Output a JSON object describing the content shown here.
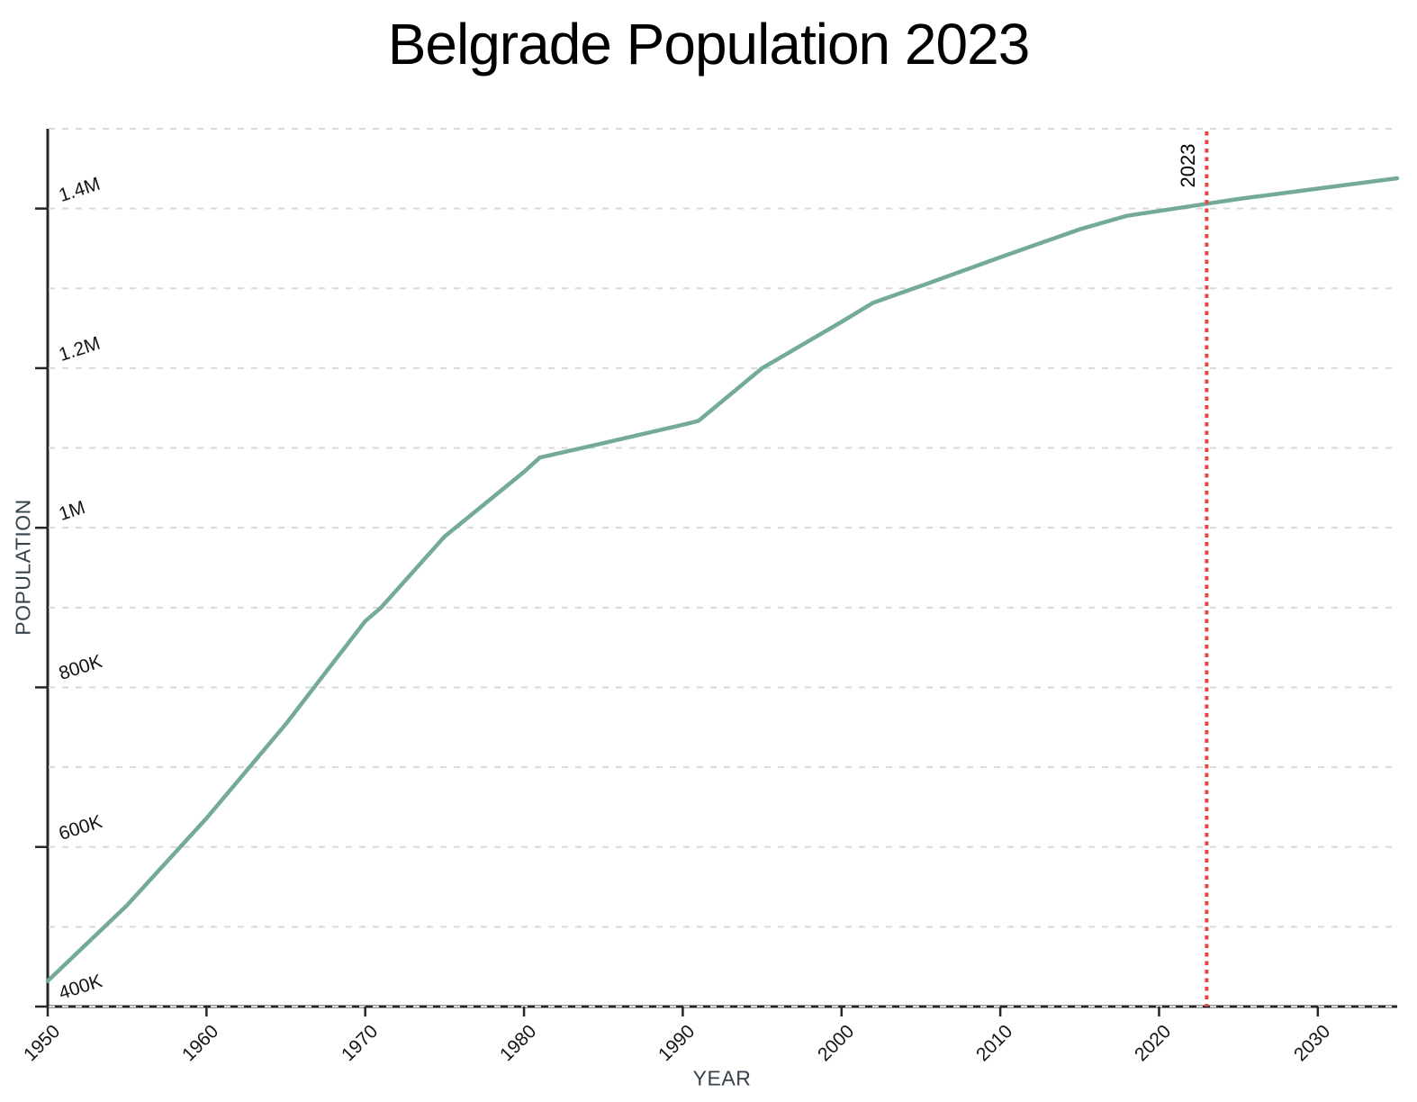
{
  "page": {
    "title": "Belgrade Population 2023"
  },
  "colors": {
    "series_line": "#74ab96",
    "marker_line": "#e8483c",
    "gridline": "#d9d9d9",
    "axis": "#262626",
    "tick_label": "#141414",
    "axis_title": "#37424a",
    "title": "#000000",
    "background": "#ffffff"
  },
  "chart_data": {
    "type": "line",
    "title": "Belgrade Population 2023",
    "xlabel": "YEAR",
    "ylabel": "POPULATION",
    "x_range": [
      1950,
      2035
    ],
    "y_range": [
      400000,
      1500000
    ],
    "grid": "horizontal dashed, every 100K",
    "legend": "none",
    "x_ticks": [
      {
        "value": 1950,
        "label": "1950"
      },
      {
        "value": 1960,
        "label": "1960"
      },
      {
        "value": 1970,
        "label": "1970"
      },
      {
        "value": 1980,
        "label": "1980"
      },
      {
        "value": 1990,
        "label": "1990"
      },
      {
        "value": 2000,
        "label": "2000"
      },
      {
        "value": 2010,
        "label": "2010"
      },
      {
        "value": 2020,
        "label": "2020"
      },
      {
        "value": 2030,
        "label": "2030"
      }
    ],
    "y_ticks": [
      {
        "value": 400000,
        "label": "400K"
      },
      {
        "value": 600000,
        "label": "600K"
      },
      {
        "value": 800000,
        "label": "800K"
      },
      {
        "value": 1000000,
        "label": "1M"
      },
      {
        "value": 1200000,
        "label": "1.2M"
      },
      {
        "value": 1400000,
        "label": "1.4M"
      }
    ],
    "gridline_values": [
      400000,
      500000,
      600000,
      700000,
      800000,
      900000,
      1000000,
      1100000,
      1200000,
      1300000,
      1400000,
      1500000
    ],
    "series": [
      {
        "name": "Belgrade population",
        "points": [
          [
            1950,
            432000
          ],
          [
            1955,
            527000
          ],
          [
            1960,
            636000
          ],
          [
            1965,
            754000
          ],
          [
            1970,
            883000
          ],
          [
            1971,
            900000
          ],
          [
            1975,
            989000
          ],
          [
            1980,
            1070000
          ],
          [
            1981,
            1088000
          ],
          [
            1985,
            1106000
          ],
          [
            1990,
            1129000
          ],
          [
            1991,
            1134000
          ],
          [
            1995,
            1200000
          ],
          [
            2000,
            1258000
          ],
          [
            2002,
            1282000
          ],
          [
            2005,
            1303000
          ],
          [
            2010,
            1339000
          ],
          [
            2015,
            1374000
          ],
          [
            2018,
            1391000
          ],
          [
            2020,
            1397000
          ],
          [
            2023,
            1406000
          ],
          [
            2025,
            1412000
          ],
          [
            2030,
            1425000
          ],
          [
            2035,
            1438000
          ]
        ]
      }
    ],
    "marker": {
      "year": 2023,
      "label": "2023",
      "style": "dotted vertical line"
    }
  }
}
